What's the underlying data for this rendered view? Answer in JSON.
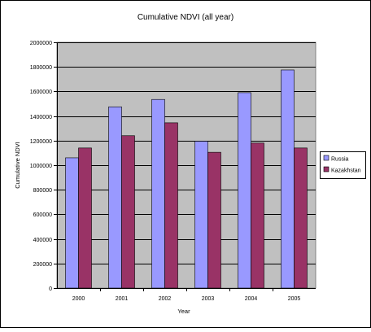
{
  "chart_data": {
    "type": "bar",
    "title": "Cumulative NDVI (all year)",
    "xlabel": "Year",
    "ylabel": "Cumulative NDVI",
    "categories": [
      "2000",
      "2001",
      "2002",
      "2003",
      "2004",
      "2005"
    ],
    "series": [
      {
        "name": "Russia",
        "color": "#9999ff",
        "values": [
          1060000,
          1475000,
          1535000,
          1195000,
          1590000,
          1775000
        ]
      },
      {
        "name": "Kazakhstan",
        "color": "#993366",
        "values": [
          1140000,
          1240000,
          1345000,
          1105000,
          1180000,
          1140000
        ]
      }
    ],
    "ylim": [
      0,
      2000000
    ],
    "yticks": [
      {
        "value": 0,
        "label": "0"
      },
      {
        "value": 200000,
        "label": "200000"
      },
      {
        "value": 400000,
        "label": "400000"
      },
      {
        "value": 600000,
        "label": "600000"
      },
      {
        "value": 800000,
        "label": "800000"
      },
      {
        "value": 1000000,
        "label": "1000000"
      },
      {
        "value": 1200000,
        "label": "1200000"
      },
      {
        "value": 1400000,
        "label": "1400000"
      },
      {
        "value": 1600000,
        "label": "1600000"
      },
      {
        "value": 1800000,
        "label": "1800000"
      },
      {
        "value": 2000000,
        "label": "2000000"
      }
    ],
    "grid": true,
    "plot_background": "#c0c0c0",
    "legend_position": "right"
  }
}
